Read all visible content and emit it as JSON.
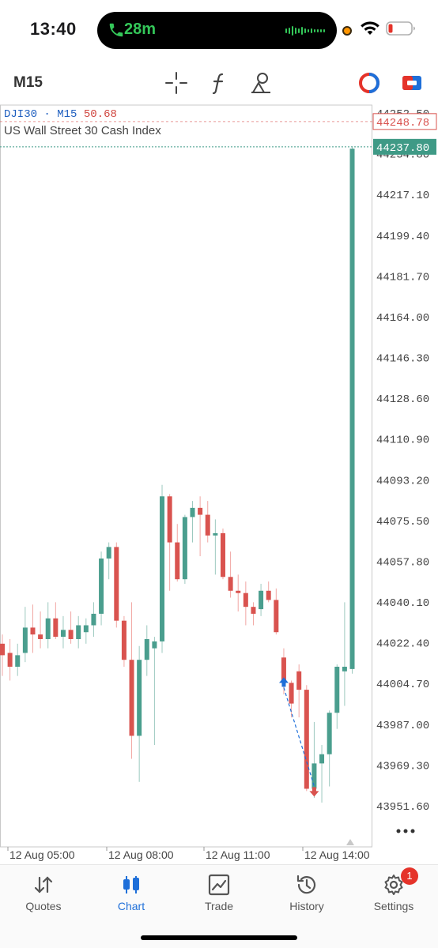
{
  "status_bar": {
    "time": "13:40",
    "call_duration": "28m",
    "icons": [
      "phone-icon",
      "waveform-icon",
      "wifi-icon",
      "battery-icon"
    ]
  },
  "toolbar": {
    "timeframe": "M15",
    "icons": [
      "crosshair-icon",
      "indicators-icon",
      "objects-icon",
      "color-scheme-icon",
      "trade-toggle-icon"
    ]
  },
  "chart_header": {
    "symbol": "DJI30",
    "timeframe": "M15",
    "bid_fragment": "50.68",
    "description": "US Wall Street 30 Cash Index"
  },
  "colors": {
    "bull": "#4a9e8e",
    "bear": "#d9534f",
    "ask_line": "#d9534f",
    "bid_line": "#3f9a86",
    "accent": "#1e6fd9"
  },
  "chart_data": {
    "type": "candlestick",
    "symbol": "DJI30",
    "timeframe": "M15",
    "ylim": [
      43940,
      44260
    ],
    "y_ticks": [
      "44252.50",
      "44234.80",
      "44217.10",
      "44199.40",
      "44181.70",
      "44164.00",
      "44146.30",
      "44128.60",
      "44110.90",
      "44093.20",
      "44075.50",
      "44057.80",
      "44040.10",
      "44022.40",
      "44004.70",
      "43987.00",
      "43969.30",
      "43951.60"
    ],
    "x_ticks": [
      "12 Aug 05:00",
      "12 Aug 08:00",
      "12 Aug 11:00",
      "12 Aug 14:00"
    ],
    "ask_price": "44248.78",
    "bid_price": "44237.80",
    "candles": [
      {
        "o": 44022,
        "h": 44026,
        "l": 44008,
        "c": 44017
      },
      {
        "o": 44018,
        "h": 44024,
        "l": 44006,
        "c": 44012
      },
      {
        "o": 44012,
        "h": 44022,
        "l": 44008,
        "c": 44017
      },
      {
        "o": 44018,
        "h": 44038,
        "l": 44014,
        "c": 44029
      },
      {
        "o": 44029,
        "h": 44039,
        "l": 44018,
        "c": 44026
      },
      {
        "o": 44026,
        "h": 44036,
        "l": 44020,
        "c": 44024
      },
      {
        "o": 44024,
        "h": 44040,
        "l": 44020,
        "c": 44033
      },
      {
        "o": 44033,
        "h": 44040,
        "l": 44024,
        "c": 44025
      },
      {
        "o": 44025,
        "h": 44034,
        "l": 44020,
        "c": 44028
      },
      {
        "o": 44028,
        "h": 44036,
        "l": 44022,
        "c": 44024
      },
      {
        "o": 44024,
        "h": 44034,
        "l": 44020,
        "c": 44030
      },
      {
        "o": 44027,
        "h": 44033,
        "l": 44022,
        "c": 44030
      },
      {
        "o": 44030,
        "h": 44040,
        "l": 44025,
        "c": 44035
      },
      {
        "o": 44035,
        "h": 44062,
        "l": 44030,
        "c": 44059
      },
      {
        "o": 44059,
        "h": 44066,
        "l": 44050,
        "c": 44064
      },
      {
        "o": 44064,
        "h": 44066,
        "l": 44029,
        "c": 44032
      },
      {
        "o": 44032,
        "h": 44034,
        "l": 44012,
        "c": 44015
      },
      {
        "o": 44015,
        "h": 44040,
        "l": 43972,
        "c": 43982
      },
      {
        "o": 43982,
        "h": 44021,
        "l": 43962,
        "c": 44015
      },
      {
        "o": 44015,
        "h": 44030,
        "l": 44008,
        "c": 44024
      },
      {
        "o": 44020,
        "h": 44025,
        "l": 43978,
        "c": 44023
      },
      {
        "o": 44023,
        "h": 44091,
        "l": 44018,
        "c": 44086
      },
      {
        "o": 44086,
        "h": 44087,
        "l": 44045,
        "c": 44066
      },
      {
        "o": 44066,
        "h": 44074,
        "l": 44049,
        "c": 44050
      },
      {
        "o": 44050,
        "h": 44078,
        "l": 44048,
        "c": 44077
      },
      {
        "o": 44077,
        "h": 44084,
        "l": 44066,
        "c": 44081
      },
      {
        "o": 44081,
        "h": 44086,
        "l": 44060,
        "c": 44078
      },
      {
        "o": 44078,
        "h": 44084,
        "l": 44066,
        "c": 44069
      },
      {
        "o": 44069,
        "h": 44076,
        "l": 44052,
        "c": 44070
      },
      {
        "o": 44070,
        "h": 44072,
        "l": 44050,
        "c": 44051
      },
      {
        "o": 44051,
        "h": 44062,
        "l": 44042,
        "c": 44045
      },
      {
        "o": 44045,
        "h": 44052,
        "l": 44036,
        "c": 44044
      },
      {
        "o": 44044,
        "h": 44049,
        "l": 44030,
        "c": 44038
      },
      {
        "o": 44038,
        "h": 44040,
        "l": 44030,
        "c": 44035
      },
      {
        "o": 44037,
        "h": 44048,
        "l": 44034,
        "c": 44045
      },
      {
        "o": 44045,
        "h": 44049,
        "l": 44040,
        "c": 44041
      },
      {
        "o": 44041,
        "h": 44046,
        "l": 44026,
        "c": 44027
      },
      {
        "o": 44016,
        "h": 44020,
        "l": 44000,
        "c": 44005
      },
      {
        "o": 44005,
        "h": 44006,
        "l": 43990,
        "c": 43996
      },
      {
        "o": 44010,
        "h": 44013,
        "l": 43990,
        "c": 44002
      },
      {
        "o": 44002,
        "h": 44004,
        "l": 43958,
        "c": 43959
      },
      {
        "o": 43959,
        "h": 43988,
        "l": 43955,
        "c": 43970
      },
      {
        "o": 43970,
        "h": 43978,
        "l": 43953,
        "c": 43974
      },
      {
        "o": 43974,
        "h": 43993,
        "l": 43960,
        "c": 43992
      },
      {
        "o": 43992,
        "h": 44013,
        "l": 43985,
        "c": 44012
      },
      {
        "o": 44010,
        "h": 44040,
        "l": 43995,
        "c": 44012
      },
      {
        "o": 44011,
        "h": 44238,
        "l": 44009,
        "c": 44237
      }
    ],
    "trade_markers": [
      {
        "type": "buy",
        "index": 37,
        "price": 44005
      },
      {
        "type": "sell",
        "index": 41,
        "price": 43958
      }
    ],
    "grid": false,
    "legend": "none"
  },
  "tabs": [
    {
      "label": "Quotes",
      "icon": "quotes-icon",
      "active": false
    },
    {
      "label": "Chart",
      "icon": "chart-icon",
      "active": true
    },
    {
      "label": "Trade",
      "icon": "trade-icon",
      "active": false
    },
    {
      "label": "History",
      "icon": "history-icon",
      "active": false
    },
    {
      "label": "Settings",
      "icon": "settings-icon",
      "active": false,
      "badge": "1"
    }
  ]
}
